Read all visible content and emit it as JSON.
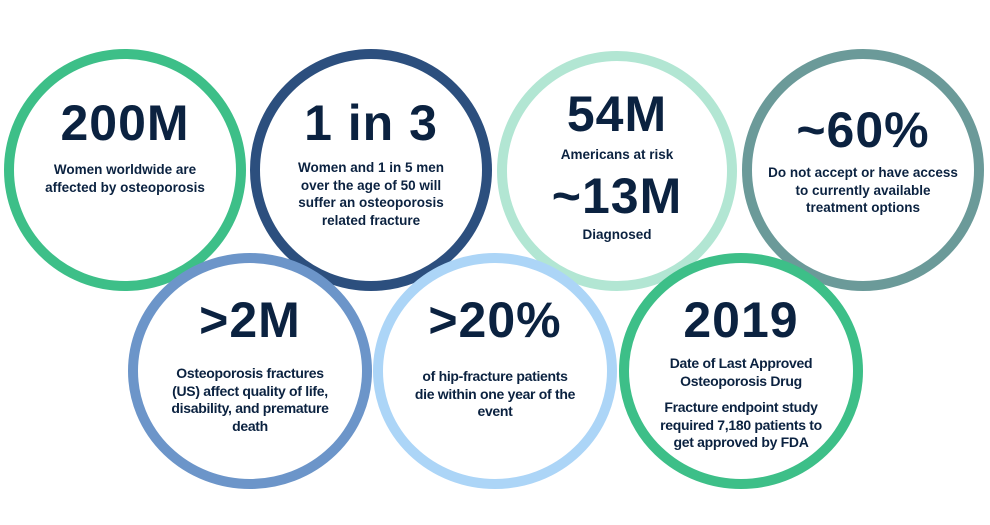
{
  "colors": {
    "text": "#0b2240",
    "green": "#3dbf88",
    "navy": "#2c4f7e",
    "mint": "#b2e6d3",
    "teal_gray": "#6b9a99",
    "medium_blue": "#6c95c9",
    "light_blue": "#acd5f7"
  },
  "stats": [
    {
      "value": "200M",
      "text": [
        "Women worldwide are",
        "affected by osteoporosis"
      ]
    },
    {
      "value": "1 in 3",
      "text": [
        "Women and 1 in 5 men",
        "over the age of 50 will",
        "suffer an osteoporosis",
        "related fracture"
      ]
    },
    {
      "value": "54M",
      "text": [
        "Americans at risk"
      ],
      "value2": "~13M",
      "text2": [
        "Diagnosed"
      ]
    },
    {
      "value": "~60%",
      "text": [
        "Do not accept or have access",
        "to currently available",
        "treatment options"
      ]
    },
    {
      "value": ">2M",
      "text": [
        "Osteoporosis fractures",
        "(US) affect quality of life,",
        "disability, and premature",
        "death"
      ]
    },
    {
      "value": ">20%",
      "text": [
        "of hip-fracture patients",
        "die within one year of the",
        "event"
      ]
    },
    {
      "value": "2019",
      "text": [
        "Date of Last Approved",
        "Osteoporosis Drug"
      ],
      "text2": [
        "Fracture endpoint study",
        "required 7,180 patients to",
        "get approved by FDA"
      ]
    }
  ]
}
